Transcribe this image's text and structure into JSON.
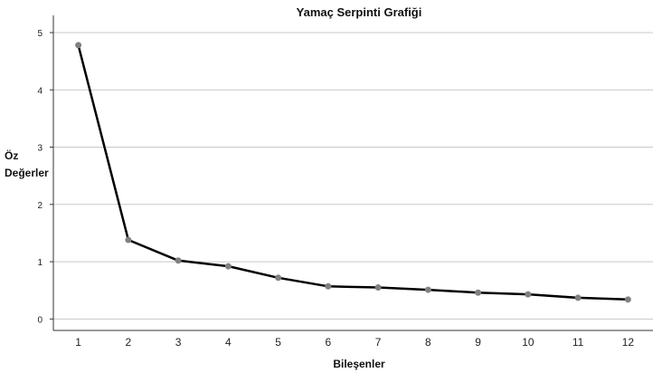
{
  "chart_data": {
    "type": "line",
    "title": "Yamaç Serpinti Grafiği",
    "xlabel": "Bileşenler",
    "ylabel_line1": "Öz",
    "ylabel_line2": "Değerler",
    "x": [
      1,
      2,
      3,
      4,
      5,
      6,
      7,
      8,
      9,
      10,
      11,
      12
    ],
    "x_tick_labels": [
      "1",
      "2",
      "3",
      "4",
      "5",
      "6",
      "7",
      "8",
      "9",
      "10",
      "11",
      "12"
    ],
    "y_tick_labels": [
      "0",
      "1",
      "2",
      "3",
      "4",
      "5"
    ],
    "series": [
      {
        "values": [
          4.78,
          1.38,
          1.02,
          0.92,
          0.72,
          0.57,
          0.55,
          0.51,
          0.46,
          0.43,
          0.37,
          0.34
        ]
      }
    ],
    "ylim": [
      -0.2,
      5.3
    ],
    "xlim": [
      0.5,
      12.5
    ],
    "grid": true,
    "line_color": "#000000",
    "marker_color": "#808080",
    "grid_color": "#c8c8c8"
  }
}
